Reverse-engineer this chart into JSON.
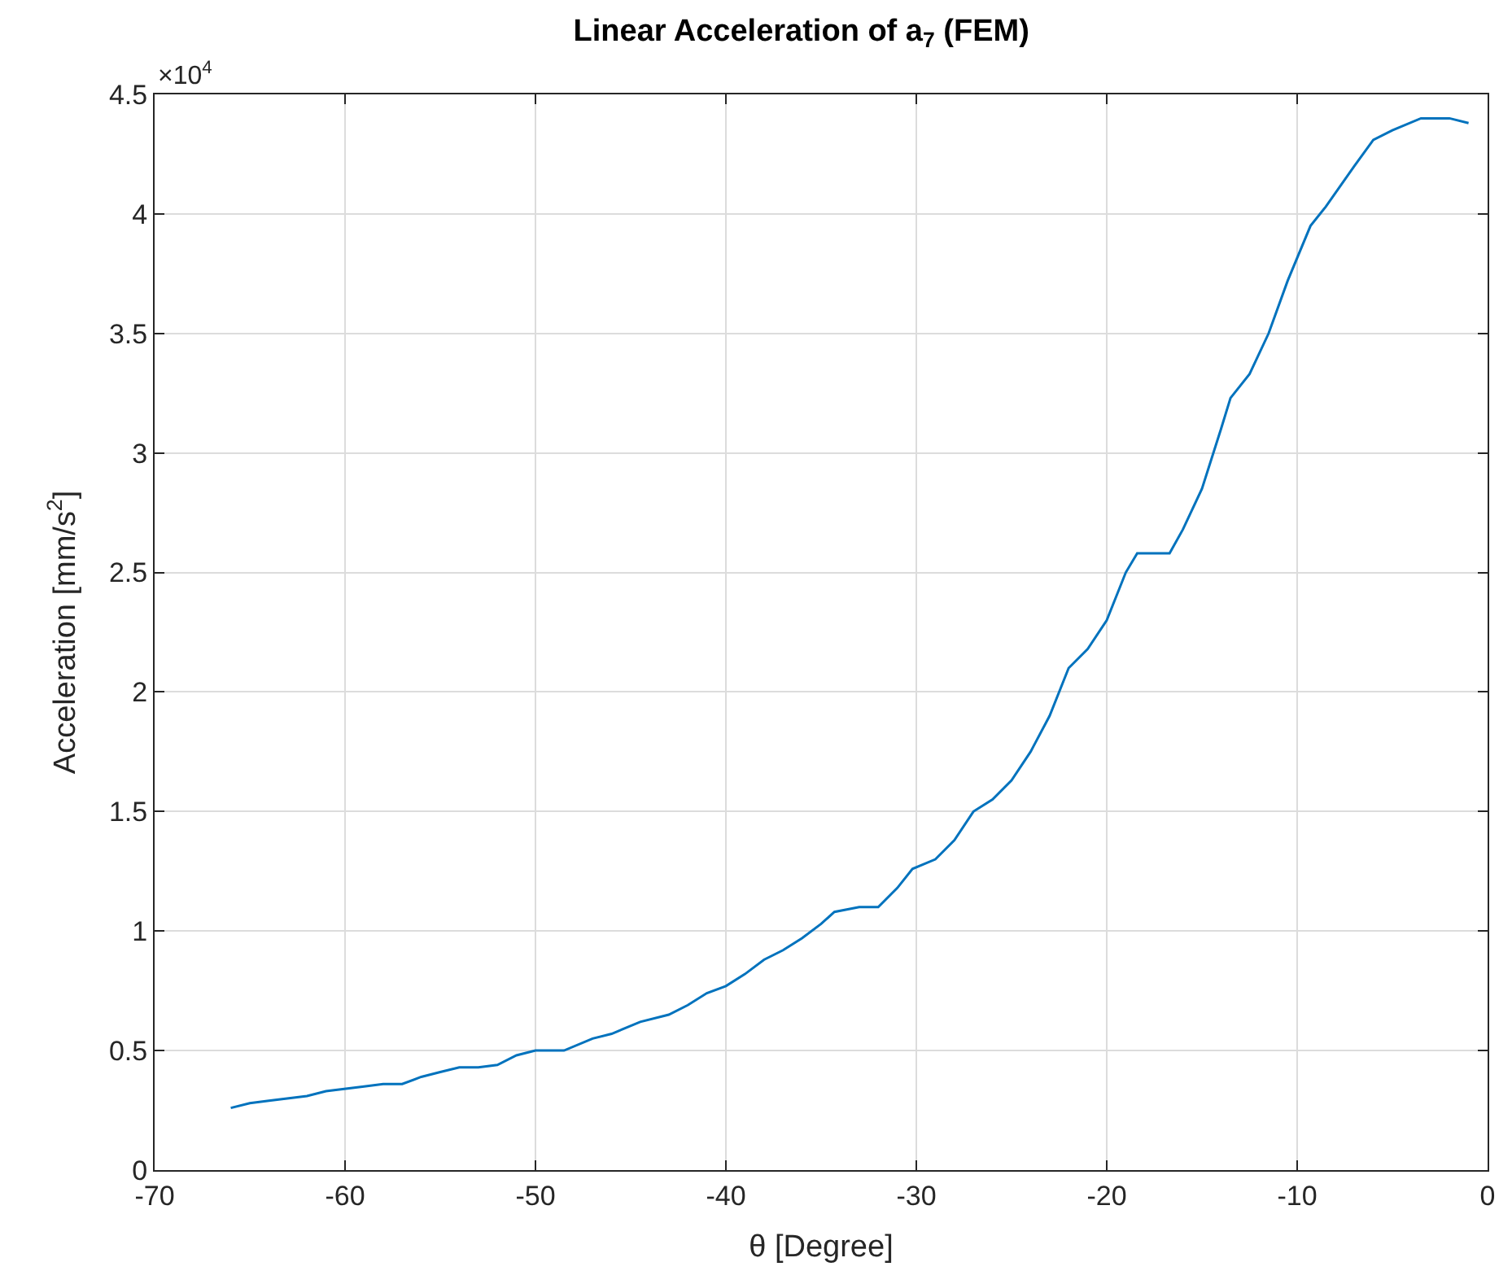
{
  "chart_data": {
    "type": "line",
    "title": "Linear Acceleration of a$_{7}$ (FEM)",
    "xlabel": "θ [Degree]",
    "ylabel": "Acceleration [mm/s$^{2}$]",
    "annotations": [
      "×10$^{4}$"
    ],
    "x": [
      -66,
      -65,
      -64,
      -62,
      -61,
      -59,
      -58,
      -57,
      -56,
      -55,
      -54,
      -53,
      -52,
      -51,
      -50,
      -48.5,
      -47,
      -46,
      -44.5,
      -43,
      -42,
      -41,
      -40,
      -39,
      -38,
      -37,
      -36,
      -35,
      -34.3,
      -33,
      -32,
      -31,
      -30.2,
      -29,
      -28,
      -27,
      -26,
      -25,
      -24,
      -23,
      -22,
      -21,
      -20,
      -19,
      -18.4,
      -16.7,
      -16,
      -15,
      -14,
      -13.5,
      -12.5,
      -11.5,
      -10.5,
      -9.3,
      -8.5,
      -7,
      -6,
      -5,
      -3.5,
      -2,
      -1
    ],
    "series": [
      {
        "color": "#0072bd",
        "values": [
          0.26,
          0.28,
          0.29,
          0.31,
          0.33,
          0.35,
          0.36,
          0.36,
          0.39,
          0.41,
          0.43,
          0.43,
          0.44,
          0.48,
          0.5,
          0.5,
          0.55,
          0.57,
          0.62,
          0.65,
          0.69,
          0.74,
          0.77,
          0.82,
          0.88,
          0.92,
          0.97,
          1.03,
          1.08,
          1.1,
          1.1,
          1.18,
          1.26,
          1.3,
          1.38,
          1.5,
          1.55,
          1.63,
          1.75,
          1.9,
          2.1,
          2.18,
          2.3,
          2.5,
          2.58,
          2.58,
          2.68,
          2.85,
          3.1,
          3.23,
          3.33,
          3.5,
          3.72,
          3.95,
          4.03,
          4.2,
          4.31,
          4.35,
          4.4,
          4.4,
          4.38
        ]
      }
    ],
    "xlim": [
      -70,
      0
    ],
    "xticks": [
      -70,
      -60,
      -50,
      -40,
      -30,
      -20,
      -10,
      0
    ],
    "ylim": [
      0,
      4.5
    ],
    "yticks": [
      0,
      0.5,
      1,
      1.5,
      2,
      2.5,
      3,
      3.5,
      4,
      4.5
    ],
    "grid": true,
    "line_style": "solid",
    "marker": "none"
  }
}
